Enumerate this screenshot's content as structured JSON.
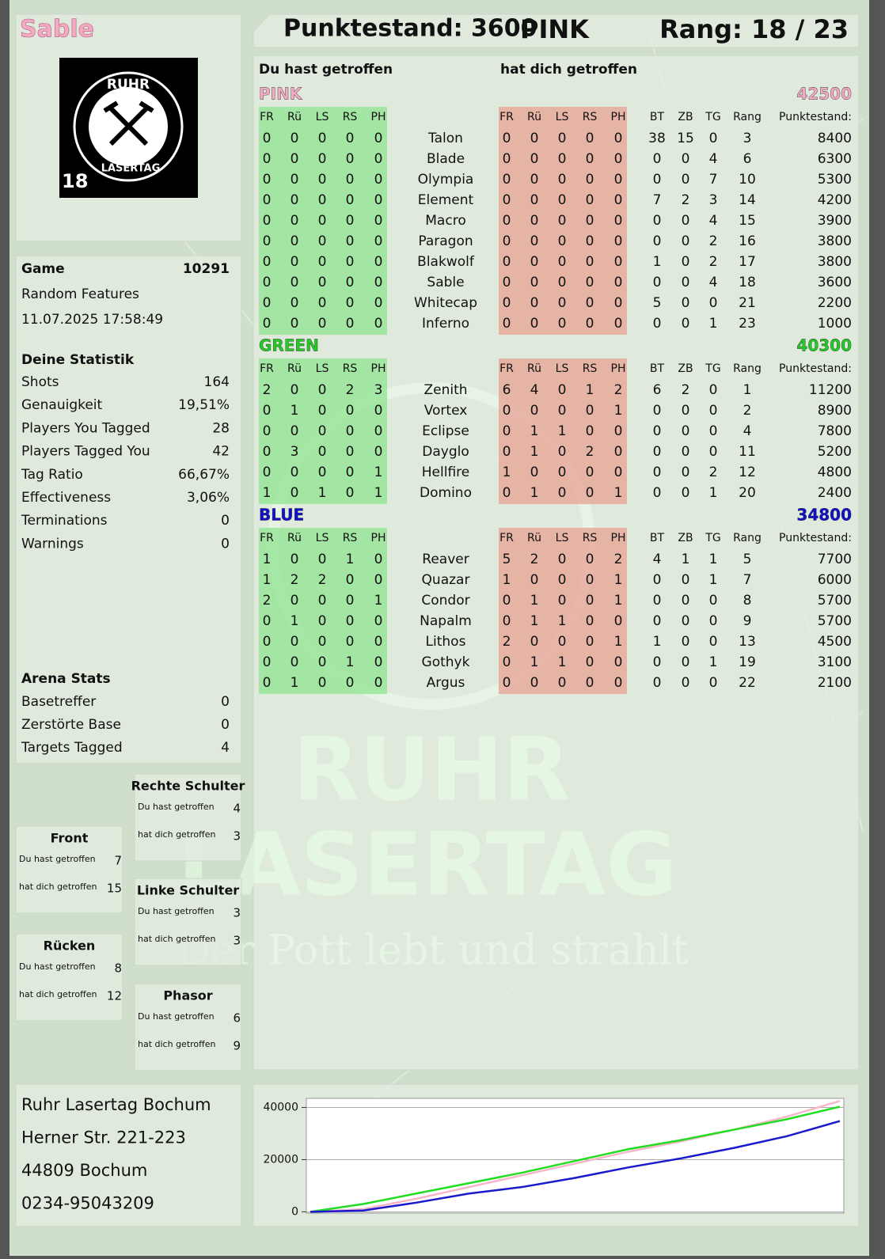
{
  "header": {
    "player": "Sable",
    "score": "Punktestand: 3600",
    "team": "PINK",
    "rank": "Rang: 18 / 23"
  },
  "logo": {
    "top": "RUHR",
    "bottom": "LASERTAG",
    "age": "18"
  },
  "game": {
    "label": "Game",
    "id": "10291",
    "mode": "Random Features",
    "date": "11.07.2025 17:58:49"
  },
  "stats": {
    "title": "Deine Statistik",
    "rows": [
      [
        "Shots",
        "164"
      ],
      [
        "Genauigkeit",
        "19,51%"
      ],
      [
        "Players You Tagged",
        "28"
      ],
      [
        "Players Tagged You",
        "42"
      ],
      [
        "Tag Ratio",
        "66,67%"
      ],
      [
        "Effectiveness",
        "3,06%"
      ],
      [
        "Terminations",
        "0"
      ],
      [
        "Warnings",
        "0"
      ]
    ]
  },
  "arena": {
    "title": "Arena Stats",
    "rows": [
      [
        "Basetreffer",
        "0"
      ],
      [
        "Zerstörte Base",
        "0"
      ],
      [
        "Targets Tagged",
        "4"
      ]
    ]
  },
  "zones": [
    {
      "title": "Rechte Schulter",
      "rows": [
        [
          "Du hast getroffen",
          "4"
        ],
        [
          "hat dich getroffen",
          "3"
        ]
      ]
    },
    {
      "title": "Front",
      "rows": [
        [
          "Du hast getroffen",
          "7"
        ],
        [
          "hat dich getroffen",
          "15"
        ]
      ]
    },
    {
      "title": "Linke Schulter",
      "rows": [
        [
          "Du hast getroffen",
          "3"
        ],
        [
          "hat dich getroffen",
          "3"
        ]
      ]
    },
    {
      "title": "Rücken",
      "rows": [
        [
          "Du hast getroffen",
          "8"
        ],
        [
          "hat dich getroffen",
          "12"
        ]
      ]
    },
    {
      "title": "Phasor",
      "rows": [
        [
          "Du hast getroffen",
          "6"
        ],
        [
          "hat dich getroffen",
          "9"
        ]
      ]
    }
  ],
  "address": [
    "Ruhr Lasertag Bochum",
    "Herner Str. 221-223",
    "44809 Bochum",
    "0234-95043209"
  ],
  "watermark": {
    "line1": "RUHR",
    "line2": "LASERTAG",
    "slogan": "Der Pott lebt und strahlt"
  },
  "table": {
    "hit_label": "Du hast getroffen",
    "hitby_label": "hat dich getroffen",
    "columns": [
      "FR",
      "Rü",
      "LS",
      "RS",
      "PH"
    ],
    "stat_columns": [
      "BT",
      "ZB",
      "TG",
      "Rang",
      "Punktestand:"
    ],
    "teams": [
      {
        "name": "PINK",
        "color": "#f6a9c2",
        "score": "42500",
        "players": [
          {
            "name": "Talon",
            "hit": [
              0,
              0,
              0,
              0,
              0
            ],
            "hitby": [
              0,
              0,
              0,
              0,
              0
            ],
            "stats": [
              38,
              15,
              0,
              3,
              8400
            ]
          },
          {
            "name": "Blade",
            "hit": [
              0,
              0,
              0,
              0,
              0
            ],
            "hitby": [
              0,
              0,
              0,
              0,
              0
            ],
            "stats": [
              0,
              0,
              4,
              6,
              6300
            ]
          },
          {
            "name": "Olympia",
            "hit": [
              0,
              0,
              0,
              0,
              0
            ],
            "hitby": [
              0,
              0,
              0,
              0,
              0
            ],
            "stats": [
              0,
              0,
              7,
              10,
              5300
            ]
          },
          {
            "name": "Element",
            "hit": [
              0,
              0,
              0,
              0,
              0
            ],
            "hitby": [
              0,
              0,
              0,
              0,
              0
            ],
            "stats": [
              7,
              2,
              3,
              14,
              4200
            ]
          },
          {
            "name": "Macro",
            "hit": [
              0,
              0,
              0,
              0,
              0
            ],
            "hitby": [
              0,
              0,
              0,
              0,
              0
            ],
            "stats": [
              0,
              0,
              4,
              15,
              3900
            ]
          },
          {
            "name": "Paragon",
            "hit": [
              0,
              0,
              0,
              0,
              0
            ],
            "hitby": [
              0,
              0,
              0,
              0,
              0
            ],
            "stats": [
              0,
              0,
              2,
              16,
              3800
            ]
          },
          {
            "name": "Blakwolf",
            "hit": [
              0,
              0,
              0,
              0,
              0
            ],
            "hitby": [
              0,
              0,
              0,
              0,
              0
            ],
            "stats": [
              1,
              0,
              2,
              17,
              3800
            ]
          },
          {
            "name": "Sable",
            "hit": [
              0,
              0,
              0,
              0,
              0
            ],
            "hitby": [
              0,
              0,
              0,
              0,
              0
            ],
            "stats": [
              0,
              0,
              4,
              18,
              3600
            ]
          },
          {
            "name": "Whitecap",
            "hit": [
              0,
              0,
              0,
              0,
              0
            ],
            "hitby": [
              0,
              0,
              0,
              0,
              0
            ],
            "stats": [
              5,
              0,
              0,
              21,
              2200
            ]
          },
          {
            "name": "Inferno",
            "hit": [
              0,
              0,
              0,
              0,
              0
            ],
            "hitby": [
              0,
              0,
              0,
              0,
              0
            ],
            "stats": [
              0,
              0,
              1,
              23,
              1000
            ]
          }
        ]
      },
      {
        "name": "GREEN",
        "color": "#22cc22",
        "score": "40300",
        "players": [
          {
            "name": "Zenith",
            "hit": [
              2,
              0,
              0,
              2,
              3
            ],
            "hitby": [
              6,
              4,
              0,
              1,
              2
            ],
            "stats": [
              6,
              2,
              0,
              1,
              11200
            ]
          },
          {
            "name": "Vortex",
            "hit": [
              0,
              1,
              0,
              0,
              0
            ],
            "hitby": [
              0,
              0,
              0,
              0,
              1
            ],
            "stats": [
              0,
              0,
              0,
              2,
              8900
            ]
          },
          {
            "name": "Eclipse",
            "hit": [
              0,
              0,
              0,
              0,
              0
            ],
            "hitby": [
              0,
              1,
              1,
              0,
              0
            ],
            "stats": [
              0,
              0,
              0,
              4,
              7800
            ]
          },
          {
            "name": "Dayglo",
            "hit": [
              0,
              3,
              0,
              0,
              0
            ],
            "hitby": [
              0,
              1,
              0,
              2,
              0
            ],
            "stats": [
              0,
              0,
              0,
              11,
              5200
            ]
          },
          {
            "name": "Hellfire",
            "hit": [
              0,
              0,
              0,
              0,
              1
            ],
            "hitby": [
              1,
              0,
              0,
              0,
              0
            ],
            "stats": [
              0,
              0,
              2,
              12,
              4800
            ]
          },
          {
            "name": "Domino",
            "hit": [
              1,
              0,
              1,
              0,
              1
            ],
            "hitby": [
              0,
              1,
              0,
              0,
              1
            ],
            "stats": [
              0,
              0,
              1,
              20,
              2400
            ]
          }
        ]
      },
      {
        "name": "BLUE",
        "color": "#1010cc",
        "score": "34800",
        "players": [
          {
            "name": "Reaver",
            "hit": [
              1,
              0,
              0,
              1,
              0
            ],
            "hitby": [
              5,
              2,
              0,
              0,
              2
            ],
            "stats": [
              4,
              1,
              1,
              5,
              7700
            ]
          },
          {
            "name": "Quazar",
            "hit": [
              1,
              2,
              2,
              0,
              0
            ],
            "hitby": [
              1,
              0,
              0,
              0,
              1
            ],
            "stats": [
              0,
              0,
              1,
              7,
              6000
            ]
          },
          {
            "name": "Condor",
            "hit": [
              2,
              0,
              0,
              0,
              1
            ],
            "hitby": [
              0,
              1,
              0,
              0,
              1
            ],
            "stats": [
              0,
              0,
              0,
              8,
              5700
            ]
          },
          {
            "name": "Napalm",
            "hit": [
              0,
              1,
              0,
              0,
              0
            ],
            "hitby": [
              0,
              1,
              1,
              0,
              0
            ],
            "stats": [
              0,
              0,
              0,
              9,
              5700
            ]
          },
          {
            "name": "Lithos",
            "hit": [
              0,
              0,
              0,
              0,
              0
            ],
            "hitby": [
              2,
              0,
              0,
              0,
              1
            ],
            "stats": [
              1,
              0,
              0,
              13,
              4500
            ]
          },
          {
            "name": "Gothyk",
            "hit": [
              0,
              0,
              0,
              1,
              0
            ],
            "hitby": [
              0,
              1,
              1,
              0,
              0
            ],
            "stats": [
              0,
              0,
              1,
              19,
              3100
            ]
          },
          {
            "name": "Argus",
            "hit": [
              0,
              1,
              0,
              0,
              0
            ],
            "hitby": [
              0,
              0,
              0,
              0,
              0
            ],
            "stats": [
              0,
              0,
              0,
              22,
              2100
            ]
          }
        ]
      }
    ]
  },
  "chart_data": {
    "type": "line",
    "categories": [
      null,
      null,
      null,
      null,
      null,
      null,
      null,
      null,
      null,
      null,
      null
    ],
    "series": [
      {
        "color": "#f7b6c8",
        "values": [
          0,
          1000,
          5000,
          9500,
          14000,
          18500,
          23000,
          27000,
          31500,
          36500,
          42500
        ]
      },
      {
        "color": "#22dd22",
        "values": [
          0,
          3000,
          7000,
          11000,
          15000,
          19500,
          24000,
          27500,
          31500,
          35500,
          40300
        ]
      },
      {
        "color": "#1a1acc",
        "values": [
          0,
          500,
          3500,
          7000,
          9500,
          13000,
          17000,
          20500,
          24500,
          29000,
          34800
        ]
      }
    ],
    "ylim": [
      -500,
      43500
    ],
    "yticks": [
      0,
      20000,
      40000
    ],
    "grid": true
  }
}
